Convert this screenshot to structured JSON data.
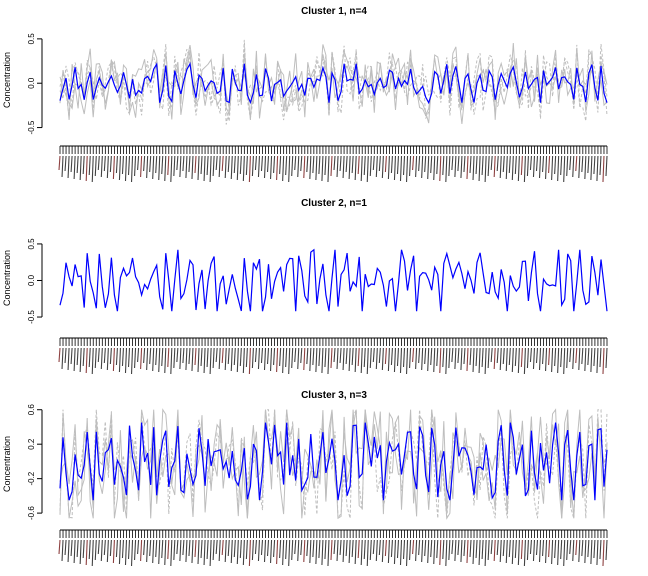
{
  "chart_data": [
    {
      "type": "line",
      "title": "Cluster 1, n=4",
      "ylabel": "Concentration",
      "xlabel": "",
      "ylim": [
        -0.55,
        0.6
      ],
      "yticks": [
        -0.5,
        0.0,
        0.5
      ],
      "n_points": 182,
      "n_members": 4,
      "seed": 11,
      "amplitude_mean": 0.22,
      "amplitude_member": 0.3,
      "series_colors": {
        "mean": "#0000ff",
        "members": "#bebebe"
      }
    },
    {
      "type": "line",
      "title": "Cluster 2, n=1",
      "ylabel": "Concentration",
      "xlabel": "",
      "ylim": [
        -0.65,
        0.8
      ],
      "yticks": [
        -0.5,
        0.0,
        0.5
      ],
      "n_points": 182,
      "n_members": 1,
      "seed": 23,
      "amplitude_mean": 0.42,
      "amplitude_member": 0.42,
      "series_colors": {
        "mean": "#0000ff",
        "members": "#bebebe"
      }
    },
    {
      "type": "line",
      "title": "Cluster 3, n=3",
      "ylabel": "Concentration",
      "xlabel": "",
      "ylim": [
        -0.68,
        0.62
      ],
      "yticks": [
        -0.6,
        -0.2,
        0.2,
        0.6
      ],
      "n_points": 182,
      "n_members": 3,
      "seed": 37,
      "amplitude_mean": 0.45,
      "amplitude_member": 0.5,
      "series_colors": {
        "mean": "#0000ff",
        "members": "#bebebe"
      }
    }
  ]
}
